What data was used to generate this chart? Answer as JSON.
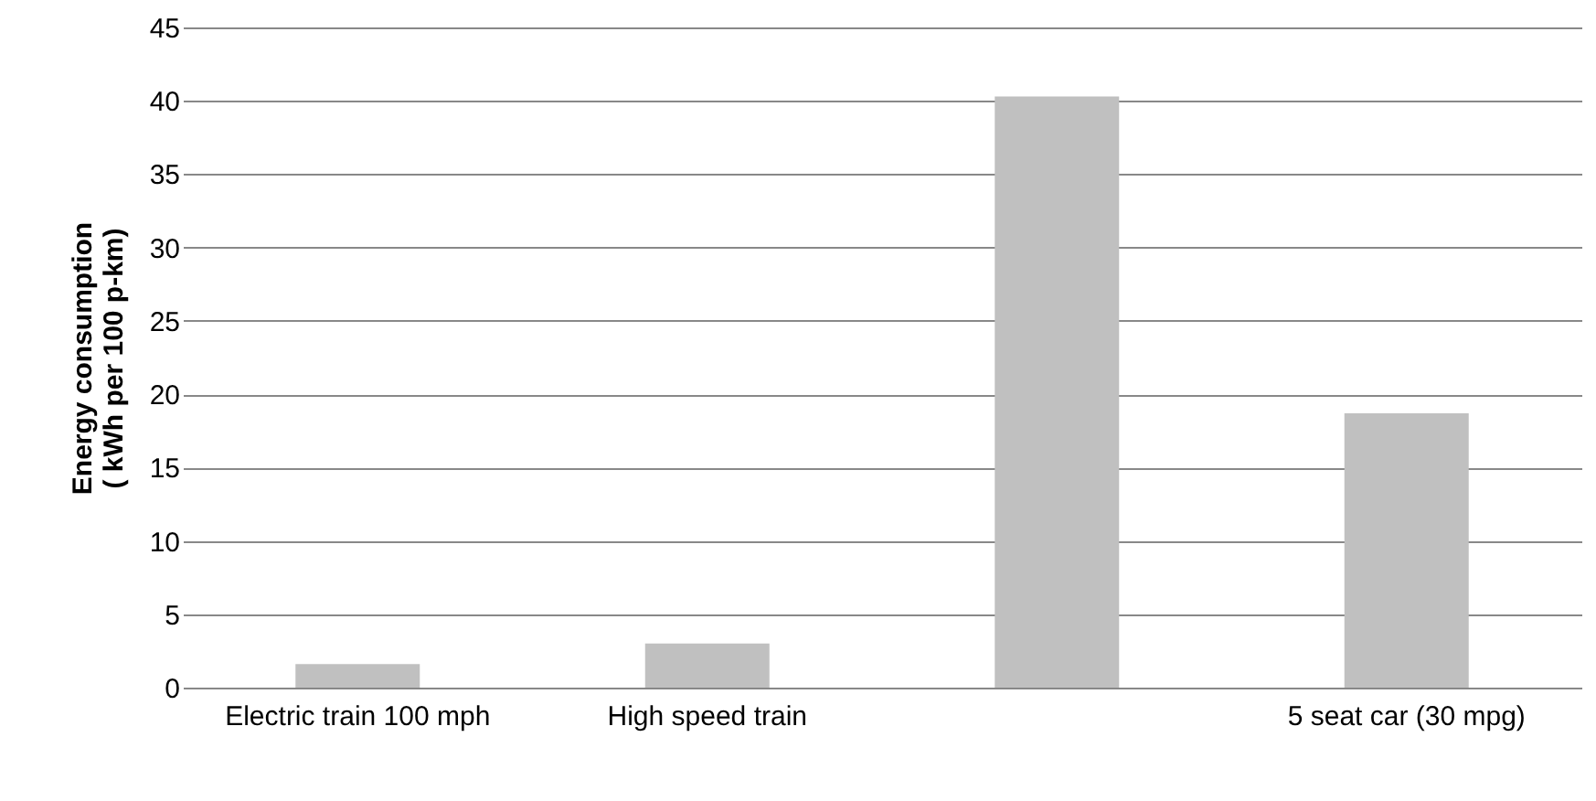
{
  "chart_data": {
    "type": "bar",
    "categories": [
      "Electric train 100 mph",
      "High speed train",
      null,
      "5 seat car (30 mpg)"
    ],
    "values": [
      1.6,
      3.0,
      40.3,
      18.7
    ],
    "color": "#c0c0c0",
    "ylabel": "Energy consumption\n( kWh per 100 p-km)",
    "ylim": [
      0,
      45
    ],
    "yticks": [
      0,
      5,
      10,
      15,
      20,
      25,
      30,
      35,
      40,
      45
    ],
    "grid": "y"
  }
}
